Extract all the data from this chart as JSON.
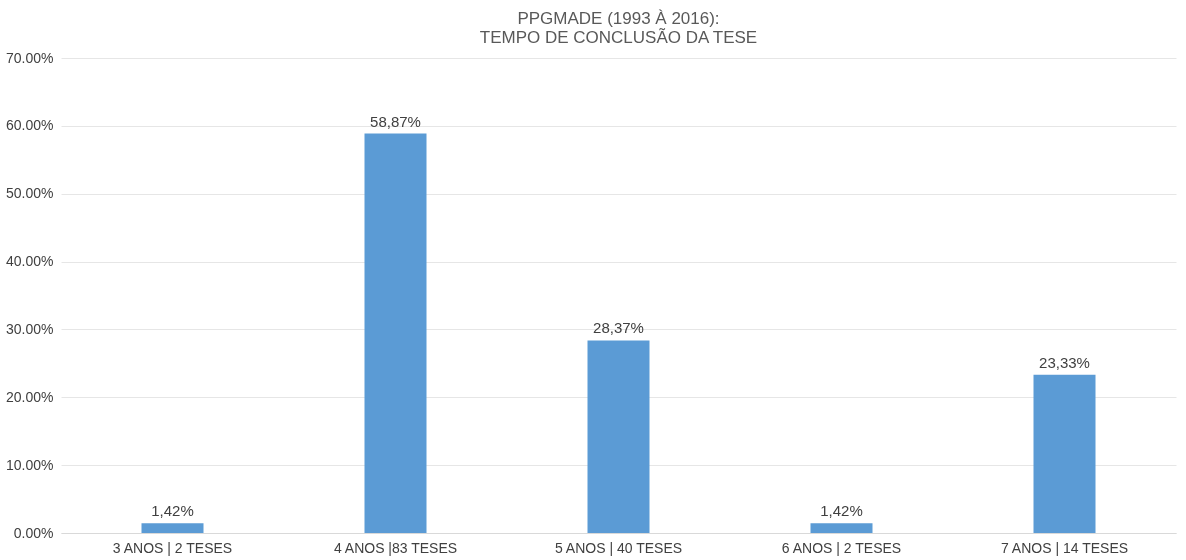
{
  "chart_data": {
    "type": "bar",
    "title": "PPGMADE (1993 À 2016):\nTEMPO DE CONCLUSÃO DA TESE",
    "categories": [
      "3 ANOS | 2 TESES",
      "4 ANOS |83 TESES",
      "5 ANOS | 40 TESES",
      "6 ANOS | 2 TESES",
      "7 ANOS | 14 TESES"
    ],
    "values": [
      1.42,
      58.87,
      28.37,
      1.42,
      23.33
    ],
    "value_labels": [
      "1,42%",
      "58,87%",
      "28,37%",
      "1,42%",
      "23,33%"
    ],
    "color": "#5b9bd5",
    "ylim": [
      0,
      70
    ],
    "yticks": [
      {
        "value": 0,
        "label": "0.00%"
      },
      {
        "value": 10,
        "label": "10.00%"
      },
      {
        "value": 20,
        "label": "20.00%"
      },
      {
        "value": 30,
        "label": "30.00%"
      },
      {
        "value": 40,
        "label": "40.00%"
      },
      {
        "value": 50,
        "label": "50.00%"
      },
      {
        "value": 60,
        "label": "60.00%"
      },
      {
        "value": 70,
        "label": "70.00%"
      }
    ],
    "grid": "y"
  }
}
